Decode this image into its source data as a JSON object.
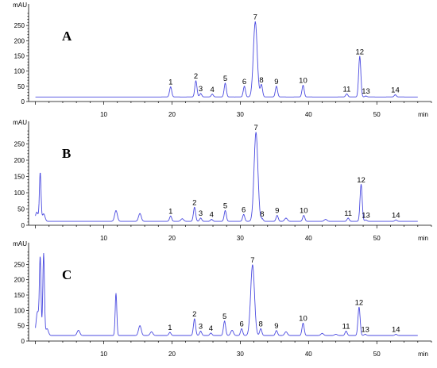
{
  "chart_data": [
    {
      "type": "line",
      "panel_label": "A",
      "x_unit": "min",
      "y_unit": "mAU",
      "xlim": [
        -1,
        58
      ],
      "ylim": [
        0,
        300
      ],
      "x_ticks": [
        10,
        20,
        30,
        40,
        50
      ],
      "y_ticks": [
        0,
        50,
        100,
        150,
        200,
        250
      ],
      "baseline": 15,
      "peaks": [
        {
          "label": "1",
          "x": 19.8,
          "y": 48
        },
        {
          "label": "2",
          "x": 23.5,
          "y": 68
        },
        {
          "label": "3",
          "x": 24.2,
          "y": 26
        },
        {
          "label": "4",
          "x": 25.9,
          "y": 24
        },
        {
          "label": "5",
          "x": 27.8,
          "y": 60
        },
        {
          "label": "6",
          "x": 30.6,
          "y": 50
        },
        {
          "label": "7",
          "x": 32.2,
          "y": 262
        },
        {
          "label": "8",
          "x": 33.1,
          "y": 55
        },
        {
          "label": "9",
          "x": 35.3,
          "y": 50
        },
        {
          "label": "10",
          "x": 39.2,
          "y": 53
        },
        {
          "label": "11",
          "x": 45.6,
          "y": 25
        },
        {
          "label": "12",
          "x": 47.5,
          "y": 148
        },
        {
          "label": "13",
          "x": 48.4,
          "y": 18
        },
        {
          "label": "14",
          "x": 52.7,
          "y": 22
        }
      ],
      "minor_peaks": []
    },
    {
      "type": "line",
      "panel_label": "B",
      "x_unit": "min",
      "y_unit": "mAU",
      "xlim": [
        -1,
        58
      ],
      "ylim": [
        0,
        300
      ],
      "x_ticks": [
        10,
        20,
        30,
        40,
        50
      ],
      "y_ticks": [
        0,
        50,
        100,
        150,
        200,
        250
      ],
      "baseline": 12,
      "peaks": [
        {
          "label": "1",
          "x": 19.8,
          "y": 28
        },
        {
          "label": "2",
          "x": 23.3,
          "y": 55
        },
        {
          "label": "3",
          "x": 24.2,
          "y": 22
        },
        {
          "label": "4",
          "x": 25.8,
          "y": 18
        },
        {
          "label": "5",
          "x": 27.8,
          "y": 45
        },
        {
          "label": "6",
          "x": 30.5,
          "y": 33
        },
        {
          "label": "7",
          "x": 32.3,
          "y": 285
        },
        {
          "label": "8",
          "x": 33.2,
          "y": 20
        },
        {
          "label": "9",
          "x": 35.4,
          "y": 30
        },
        {
          "label": "10",
          "x": 39.3,
          "y": 30
        },
        {
          "label": "11",
          "x": 45.8,
          "y": 22
        },
        {
          "label": "12",
          "x": 47.7,
          "y": 125
        },
        {
          "label": "13",
          "x": 48.4,
          "y": 16
        },
        {
          "label": "14",
          "x": 52.8,
          "y": 16
        }
      ],
      "minor_peaks": [
        {
          "x": 0.2,
          "y": 40
        },
        {
          "x": 0.7,
          "y": 160
        },
        {
          "x": 1.2,
          "y": 35
        },
        {
          "x": 11.8,
          "y": 45
        },
        {
          "x": 15.3,
          "y": 36
        },
        {
          "x": 21.5,
          "y": 20
        },
        {
          "x": 36.7,
          "y": 22
        },
        {
          "x": 42.5,
          "y": 18
        }
      ]
    },
    {
      "type": "line",
      "panel_label": "C",
      "x_unit": "min",
      "y_unit": "mAU",
      "xlim": [
        -1,
        58
      ],
      "ylim": [
        0,
        300
      ],
      "x_ticks": [
        10,
        20,
        30,
        40,
        50
      ],
      "y_ticks": [
        0,
        50,
        100,
        150,
        200,
        250
      ],
      "baseline": 18,
      "peaks": [
        {
          "label": "1",
          "x": 19.7,
          "y": 28
        },
        {
          "label": "2",
          "x": 23.3,
          "y": 72
        },
        {
          "label": "3",
          "x": 24.2,
          "y": 32
        },
        {
          "label": "4",
          "x": 25.7,
          "y": 26
        },
        {
          "label": "5",
          "x": 27.7,
          "y": 65
        },
        {
          "label": "6",
          "x": 30.2,
          "y": 40
        },
        {
          "label": "7",
          "x": 31.8,
          "y": 248
        },
        {
          "label": "8",
          "x": 33.0,
          "y": 40
        },
        {
          "label": "9",
          "x": 35.3,
          "y": 34
        },
        {
          "label": "10",
          "x": 39.2,
          "y": 58
        },
        {
          "label": "11",
          "x": 45.5,
          "y": 32
        },
        {
          "label": "12",
          "x": 47.4,
          "y": 110
        },
        {
          "label": "13",
          "x": 48.3,
          "y": 22
        },
        {
          "label": "14",
          "x": 52.8,
          "y": 22
        }
      ],
      "minor_peaks": [
        {
          "x": 0.3,
          "y": 95
        },
        {
          "x": 0.7,
          "y": 265
        },
        {
          "x": 1.2,
          "y": 285
        },
        {
          "x": 1.7,
          "y": 40
        },
        {
          "x": 6.3,
          "y": 35
        },
        {
          "x": 11.8,
          "y": 155
        },
        {
          "x": 15.3,
          "y": 50
        },
        {
          "x": 17.0,
          "y": 30
        },
        {
          "x": 28.8,
          "y": 35
        },
        {
          "x": 36.7,
          "y": 30
        },
        {
          "x": 42.0,
          "y": 25
        },
        {
          "x": 44.0,
          "y": 22
        }
      ]
    }
  ]
}
